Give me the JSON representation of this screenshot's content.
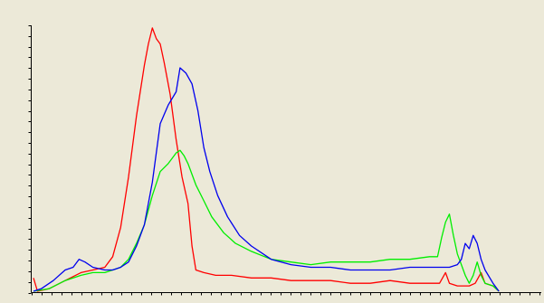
{
  "background_color": "#ece9d8",
  "axis_color": "#000000",
  "chart_data": {
    "type": "line",
    "title": "",
    "xlabel": "",
    "ylabel": "",
    "xlim": [
      0,
      255
    ],
    "ylim": [
      0,
      100
    ],
    "grid": false,
    "legend": "none",
    "y_tick_count": 26,
    "x_tick_count": 52,
    "series": [
      {
        "color": "#ff0000",
        "points": [
          [
            0,
            5
          ],
          [
            2,
            0
          ],
          [
            8,
            1
          ],
          [
            16,
            4
          ],
          [
            24,
            7
          ],
          [
            30,
            8
          ],
          [
            36,
            9
          ],
          [
            40,
            13
          ],
          [
            44,
            24
          ],
          [
            48,
            43
          ],
          [
            52,
            66
          ],
          [
            56,
            85
          ],
          [
            58,
            93
          ],
          [
            60,
            99
          ],
          [
            62,
            95
          ],
          [
            64,
            93
          ],
          [
            66,
            86
          ],
          [
            69,
            74
          ],
          [
            72,
            57
          ],
          [
            75,
            43
          ],
          [
            78,
            33
          ],
          [
            80,
            17
          ],
          [
            82,
            8
          ],
          [
            86,
            7
          ],
          [
            92,
            6
          ],
          [
            100,
            6
          ],
          [
            110,
            5
          ],
          [
            120,
            5
          ],
          [
            130,
            4
          ],
          [
            140,
            4
          ],
          [
            150,
            4
          ],
          [
            160,
            3
          ],
          [
            170,
            3
          ],
          [
            180,
            4
          ],
          [
            190,
            3
          ],
          [
            200,
            3
          ],
          [
            205,
            3
          ],
          [
            208,
            7
          ],
          [
            210,
            3
          ],
          [
            214,
            2
          ],
          [
            220,
            2
          ],
          [
            223,
            3
          ],
          [
            226,
            7
          ],
          [
            228,
            3
          ],
          [
            232,
            2
          ],
          [
            235,
            0
          ]
        ]
      },
      {
        "color": "#00ee00",
        "points": [
          [
            0,
            0
          ],
          [
            8,
            1
          ],
          [
            16,
            4
          ],
          [
            24,
            6
          ],
          [
            30,
            7
          ],
          [
            36,
            7
          ],
          [
            40,
            8
          ],
          [
            44,
            9
          ],
          [
            48,
            12
          ],
          [
            52,
            18
          ],
          [
            56,
            25
          ],
          [
            60,
            36
          ],
          [
            64,
            45
          ],
          [
            68,
            48
          ],
          [
            72,
            52
          ],
          [
            74,
            53
          ],
          [
            76,
            51
          ],
          [
            78,
            48
          ],
          [
            82,
            40
          ],
          [
            86,
            34
          ],
          [
            90,
            28
          ],
          [
            96,
            22
          ],
          [
            102,
            18
          ],
          [
            110,
            15
          ],
          [
            120,
            12
          ],
          [
            130,
            11
          ],
          [
            140,
            10
          ],
          [
            150,
            11
          ],
          [
            160,
            11
          ],
          [
            170,
            11
          ],
          [
            180,
            12
          ],
          [
            190,
            12
          ],
          [
            200,
            13
          ],
          [
            204,
            13
          ],
          [
            206,
            20
          ],
          [
            208,
            26
          ],
          [
            210,
            29
          ],
          [
            212,
            21
          ],
          [
            214,
            14
          ],
          [
            216,
            10
          ],
          [
            218,
            6
          ],
          [
            220,
            3
          ],
          [
            222,
            6
          ],
          [
            224,
            11
          ],
          [
            226,
            6
          ],
          [
            228,
            3
          ],
          [
            232,
            2
          ],
          [
            235,
            0
          ]
        ]
      },
      {
        "color": "#0000ee",
        "points": [
          [
            0,
            0
          ],
          [
            4,
            1
          ],
          [
            10,
            4
          ],
          [
            16,
            8
          ],
          [
            20,
            9
          ],
          [
            23,
            12
          ],
          [
            26,
            11
          ],
          [
            30,
            9
          ],
          [
            36,
            8
          ],
          [
            40,
            8
          ],
          [
            44,
            9
          ],
          [
            48,
            11
          ],
          [
            52,
            17
          ],
          [
            56,
            25
          ],
          [
            60,
            41
          ],
          [
            64,
            63
          ],
          [
            68,
            70
          ],
          [
            72,
            75
          ],
          [
            74,
            84
          ],
          [
            77,
            82
          ],
          [
            80,
            78
          ],
          [
            83,
            68
          ],
          [
            86,
            54
          ],
          [
            89,
            45
          ],
          [
            93,
            36
          ],
          [
            98,
            28
          ],
          [
            104,
            21
          ],
          [
            110,
            17
          ],
          [
            120,
            12
          ],
          [
            130,
            10
          ],
          [
            140,
            9
          ],
          [
            150,
            9
          ],
          [
            160,
            8
          ],
          [
            170,
            8
          ],
          [
            180,
            8
          ],
          [
            190,
            9
          ],
          [
            200,
            9
          ],
          [
            210,
            9
          ],
          [
            214,
            10
          ],
          [
            216,
            12
          ],
          [
            218,
            18
          ],
          [
            220,
            16
          ],
          [
            222,
            21
          ],
          [
            224,
            18
          ],
          [
            226,
            12
          ],
          [
            228,
            8
          ],
          [
            232,
            3
          ],
          [
            235,
            0
          ]
        ]
      }
    ]
  }
}
